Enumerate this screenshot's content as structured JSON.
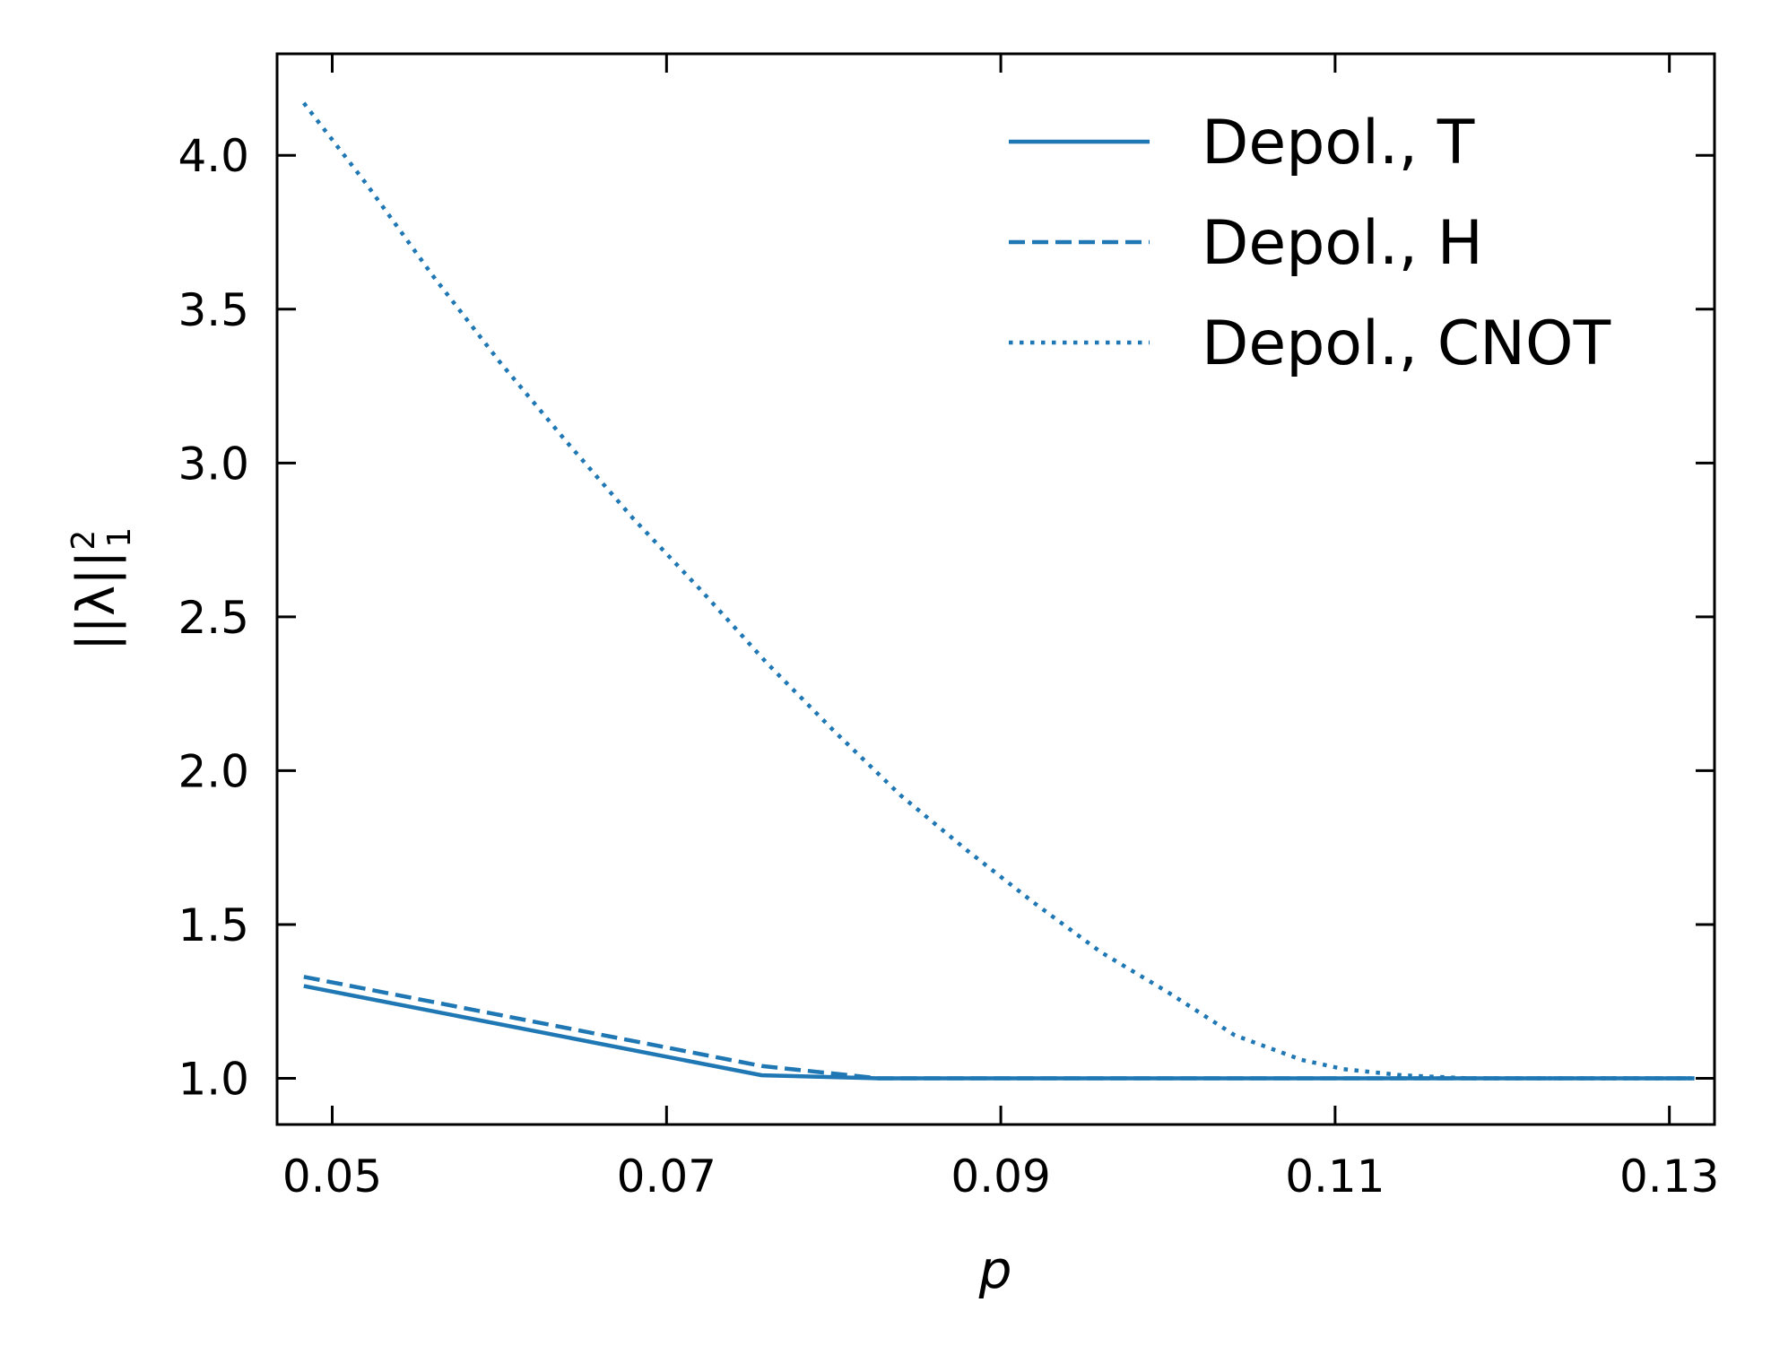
{
  "chart_data": {
    "type": "line",
    "xlabel": "p",
    "ylabel": "||λ||",
    "ylabel_sup": "2",
    "ylabel_sub": "1",
    "xlim": [
      0.0467,
      0.1327
    ],
    "ylim": [
      0.85,
      4.33
    ],
    "xticks": [
      0.05,
      0.07,
      0.09,
      0.11,
      0.13
    ],
    "xtick_labels": [
      "0.05",
      "0.07",
      "0.09",
      "0.11",
      "0.13"
    ],
    "yticks": [
      1.0,
      1.5,
      2.0,
      2.5,
      3.0,
      3.5,
      4.0
    ],
    "ytick_labels": [
      "1.0",
      "1.5",
      "2.0",
      "2.5",
      "3.0",
      "3.5",
      "4.0"
    ],
    "grid": false,
    "legend_position": "top-right",
    "color": "#1f77b4",
    "series": [
      {
        "name": "Depol., T",
        "style": "solid",
        "x": [
          0.0483,
          0.0757,
          0.0827,
          0.09,
          0.1,
          0.11,
          0.12,
          0.1315
        ],
        "y": [
          1.3,
          1.01,
          1.0,
          1.0,
          1.0,
          1.0,
          1.0,
          1.0
        ]
      },
      {
        "name": "Depol., H",
        "style": "dashed",
        "x": [
          0.0483,
          0.0757,
          0.0827,
          0.09,
          0.1,
          0.11,
          0.12,
          0.1315
        ],
        "y": [
          1.33,
          1.04,
          1.0,
          1.0,
          1.0,
          1.0,
          1.0,
          1.0
        ]
      },
      {
        "name": "Depol., CNOT",
        "style": "dotted",
        "x": [
          0.0483,
          0.052,
          0.056,
          0.06,
          0.064,
          0.068,
          0.072,
          0.076,
          0.08,
          0.084,
          0.088,
          0.092,
          0.096,
          0.1,
          0.104,
          0.108,
          0.1105,
          0.114,
          0.118,
          0.122,
          0.126,
          0.1315
        ],
        "y": [
          4.17,
          3.91,
          3.61,
          3.33,
          3.07,
          2.82,
          2.59,
          2.35,
          2.13,
          1.92,
          1.74,
          1.57,
          1.41,
          1.28,
          1.14,
          1.06,
          1.03,
          1.01,
          1.0,
          1.0,
          1.0,
          1.0
        ]
      }
    ]
  }
}
